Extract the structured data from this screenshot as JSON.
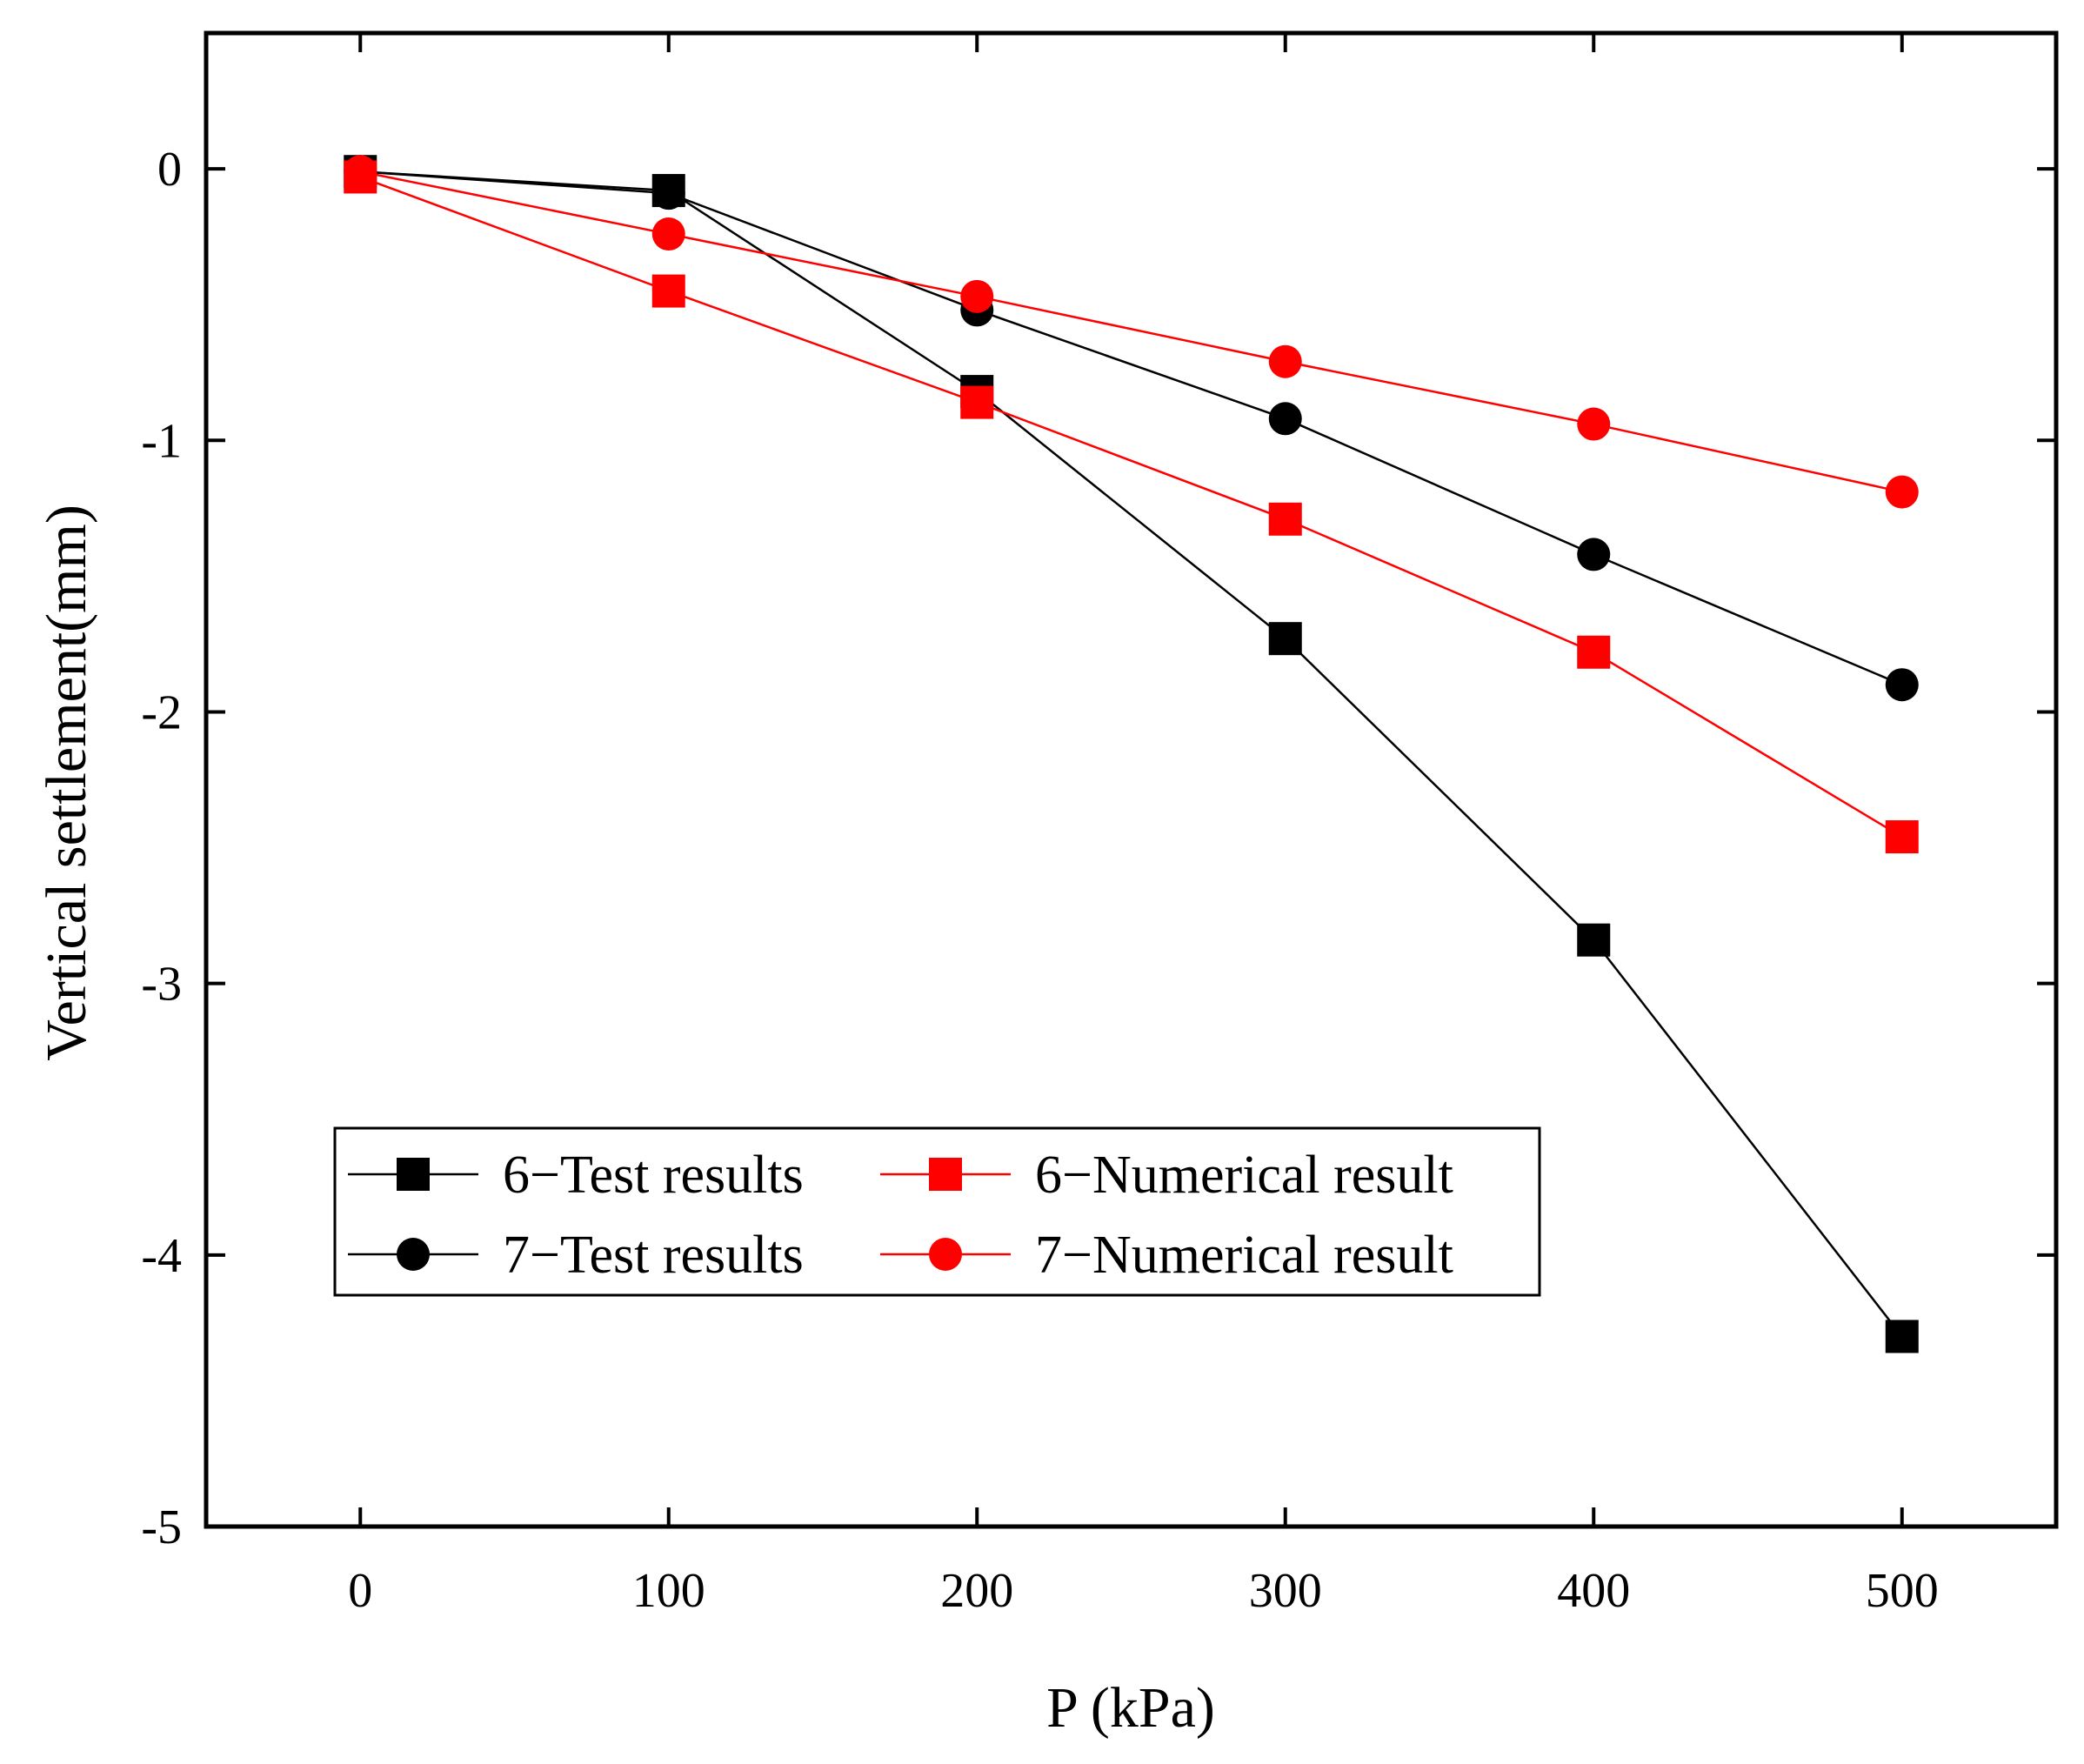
{
  "chart_data": {
    "type": "line",
    "title": "",
    "xlabel": "P (kPa)",
    "ylabel": "Vertical settlement(mm)",
    "xlim": [
      -50,
      550
    ],
    "ylim": [
      -5,
      0.5
    ],
    "x": [
      0,
      100,
      200,
      300,
      400,
      500
    ],
    "xticks": [
      "0",
      "100",
      "200",
      "300",
      "400",
      "500"
    ],
    "yticks": [
      "0",
      "-1",
      "-2",
      "-3",
      "-4",
      "-5"
    ],
    "ytick_values": [
      0,
      -1,
      -2,
      -3,
      -4,
      -5
    ],
    "legend_position": "lower-left",
    "series": [
      {
        "name": "6−Test results",
        "marker": "square",
        "color": "#000000",
        "values": [
          -0.01,
          -0.08,
          -0.82,
          -1.73,
          -2.84,
          -4.3
        ]
      },
      {
        "name": "7−Test results",
        "marker": "circle",
        "color": "#000000",
        "values": [
          -0.01,
          -0.09,
          -0.52,
          -0.92,
          -1.42,
          -1.9
        ]
      },
      {
        "name": "6−Numerical result",
        "marker": "square",
        "color": "#ff0000",
        "values": [
          -0.03,
          -0.45,
          -0.86,
          -1.29,
          -1.78,
          -2.46
        ]
      },
      {
        "name": "7−Numerical result",
        "marker": "circle",
        "color": "#ff0000",
        "values": [
          -0.01,
          -0.24,
          -0.47,
          -0.71,
          -0.94,
          -1.19
        ]
      }
    ]
  }
}
